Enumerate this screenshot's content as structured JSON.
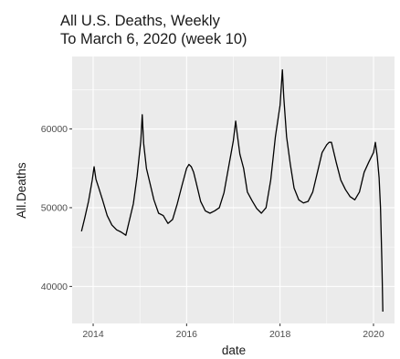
{
  "chart_data": {
    "type": "line",
    "title": "All U.S. Deaths, Weekly",
    "subtitle": "To March 6, 2020 (week 10)",
    "xlabel": "date",
    "ylabel": "All.Deaths",
    "xlim": [
      2013.55,
      2020.45
    ],
    "ylim": [
      35300,
      69200
    ],
    "x_ticks": [
      {
        "value": 2014,
        "label": "2014"
      },
      {
        "value": 2016,
        "label": "2016"
      },
      {
        "value": 2018,
        "label": "2018"
      },
      {
        "value": 2020,
        "label": "2020"
      }
    ],
    "y_ticks": [
      {
        "value": 40000,
        "label": "40000"
      },
      {
        "value": 50000,
        "label": "50000"
      },
      {
        "value": 60000,
        "label": "60000"
      }
    ],
    "grid": true,
    "legend": "none",
    "colors": {
      "panel": "#ebebeb",
      "grid": "#ffffff",
      "line": "#000000"
    },
    "series": [
      {
        "x": [
          2013.75,
          2013.82,
          2013.9,
          2013.98,
          2014.02,
          2014.06,
          2014.12,
          2014.2,
          2014.3,
          2014.4,
          2014.5,
          2014.6,
          2014.7,
          2014.78,
          2014.86,
          2014.94,
          2015.02,
          2015.05,
          2015.08,
          2015.14,
          2015.22,
          2015.3,
          2015.4,
          2015.5,
          2015.6,
          2015.7,
          2015.8,
          2015.9,
          2016.0,
          2016.05,
          2016.1,
          2016.15,
          2016.2,
          2016.3,
          2016.4,
          2016.5,
          2016.6,
          2016.7,
          2016.8,
          2016.9,
          2017.0,
          2017.05,
          2017.08,
          2017.14,
          2017.22,
          2017.3,
          2017.4,
          2017.5,
          2017.6,
          2017.7,
          2017.8,
          2017.9,
          2018.0,
          2018.05,
          2018.08,
          2018.14,
          2018.22,
          2018.3,
          2018.4,
          2018.5,
          2018.6,
          2018.7,
          2018.8,
          2018.9,
          2019.0,
          2019.05,
          2019.1,
          2019.2,
          2019.3,
          2019.4,
          2019.5,
          2019.6,
          2019.7,
          2019.8,
          2019.9,
          2020.0,
          2020.04,
          2020.08,
          2020.12,
          2020.15,
          2020.18,
          2020.2
        ],
        "values": [
          47000,
          48700,
          50800,
          53500,
          55200,
          53600,
          52500,
          51000,
          49000,
          47800,
          47200,
          46900,
          46500,
          48500,
          50500,
          54000,
          58500,
          61800,
          58200,
          55000,
          53000,
          51000,
          49300,
          49000,
          48000,
          48500,
          50500,
          52800,
          55000,
          55500,
          55200,
          54500,
          53300,
          50800,
          49600,
          49300,
          49600,
          50000,
          51900,
          55200,
          58500,
          61000,
          59500,
          56800,
          55000,
          52000,
          50900,
          49900,
          49300,
          50000,
          53500,
          59000,
          63000,
          67500,
          64000,
          59000,
          55500,
          52500,
          51000,
          50600,
          50800,
          52000,
          54500,
          57000,
          58000,
          58300,
          58300,
          55800,
          53500,
          52300,
          51400,
          51000,
          52000,
          54500,
          55800,
          57000,
          58300,
          56500,
          53800,
          50000,
          43000,
          36800
        ]
      }
    ]
  }
}
